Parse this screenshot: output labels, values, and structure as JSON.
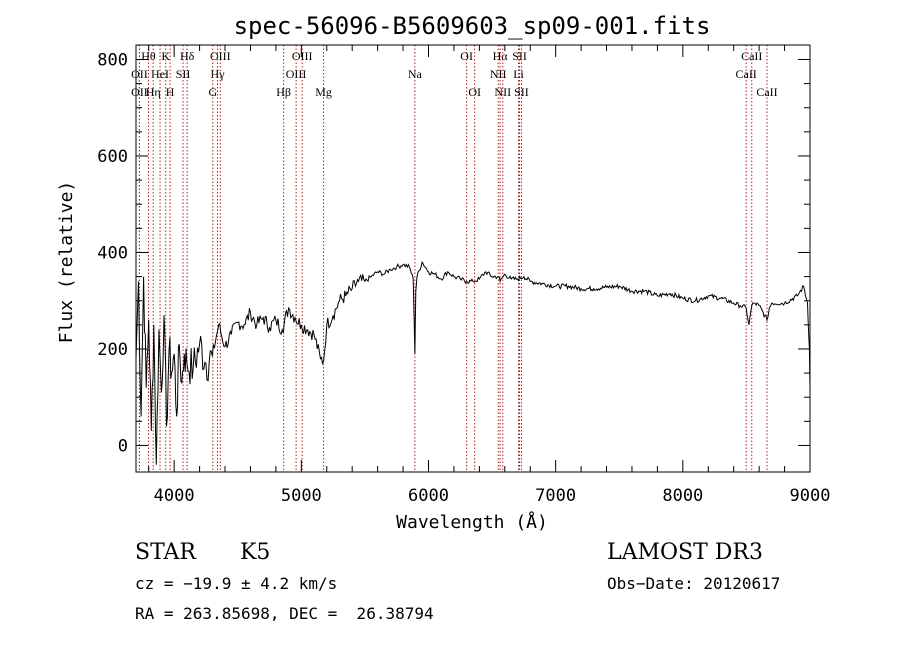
{
  "chart_data": {
    "type": "line",
    "title": "spec-56096-B5609603_sp09-001.fits",
    "xlabel": "Wavelength (Å)",
    "ylabel": "Flux (relative)",
    "xlim": [
      3700,
      9000
    ],
    "ylim": [
      -55,
      830
    ],
    "x_ticks": [
      4000,
      5000,
      6000,
      7000,
      8000,
      9000
    ],
    "y_ticks": [
      0,
      200,
      400,
      600,
      800
    ],
    "series": [
      {
        "name": "flux",
        "x": [
          3700,
          3720,
          3740,
          3760,
          3780,
          3800,
          3820,
          3840,
          3860,
          3880,
          3900,
          3920,
          3940,
          3960,
          3980,
          4000,
          4020,
          4040,
          4060,
          4080,
          4100,
          4150,
          4200,
          4250,
          4300,
          4350,
          4400,
          4450,
          4500,
          4550,
          4600,
          4650,
          4700,
          4750,
          4800,
          4850,
          4900,
          4950,
          5000,
          5050,
          5100,
          5150,
          5175,
          5200,
          5250,
          5300,
          5350,
          5400,
          5450,
          5500,
          5550,
          5600,
          5650,
          5700,
          5750,
          5800,
          5850,
          5880,
          5893,
          5900,
          5910,
          5950,
          6000,
          6050,
          6100,
          6150,
          6200,
          6250,
          6300,
          6350,
          6400,
          6450,
          6500,
          6550,
          6563,
          6600,
          6650,
          6700,
          6750,
          6800,
          6900,
          7000,
          7100,
          7200,
          7300,
          7400,
          7500,
          7600,
          7700,
          7800,
          7900,
          8000,
          8100,
          8200,
          8300,
          8400,
          8450,
          8498,
          8520,
          8542,
          8560,
          8600,
          8662,
          8680,
          8700,
          8800,
          8900,
          8950,
          8980,
          8995,
          9000
        ],
        "values": [
          180,
          340,
          60,
          350,
          120,
          260,
          30,
          250,
          -40,
          240,
          110,
          270,
          40,
          200,
          150,
          190,
          60,
          210,
          130,
          190,
          170,
          160,
          210,
          170,
          185,
          250,
          205,
          230,
          255,
          250,
          275,
          250,
          265,
          245,
          260,
          240,
          285,
          265,
          250,
          240,
          230,
          180,
          175,
          250,
          270,
          300,
          310,
          325,
          340,
          340,
          350,
          360,
          355,
          365,
          370,
          375,
          370,
          345,
          190,
          320,
          350,
          380,
          360,
          355,
          345,
          360,
          350,
          345,
          340,
          340,
          345,
          360,
          350,
          350,
          340,
          355,
          345,
          345,
          350,
          340,
          335,
          330,
          330,
          325,
          325,
          328,
          330,
          320,
          320,
          310,
          315,
          305,
          300,
          310,
          305,
          295,
          290,
          285,
          250,
          290,
          295,
          290,
          260,
          285,
          295,
          295,
          310,
          330,
          295,
          200,
          120
        ]
      }
    ],
    "lines": [
      {
        "name": "Hθ",
        "x": 3798
      },
      {
        "name": "K",
        "x": 3934
      },
      {
        "name": "Hδ",
        "x": 4102
      },
      {
        "name": "OIII",
        "x": 4363
      },
      {
        "name": "OII",
        "x": 3727
      },
      {
        "name": "HeI",
        "x": 3889
      },
      {
        "name": "SII",
        "x": 4070
      },
      {
        "name": "Hγ",
        "x": 4341
      },
      {
        "name": "OII",
        "x": 3727
      },
      {
        "name": "Hη",
        "x": 3835
      },
      {
        "name": "H",
        "x": 3968
      },
      {
        "name": "G",
        "x": 4304
      },
      {
        "name": "OIII",
        "x": 5007
      },
      {
        "name": "OIII",
        "x": 4959
      },
      {
        "name": "Hβ",
        "x": 4861
      },
      {
        "name": "Mg",
        "x": 5175
      },
      {
        "name": "Na",
        "x": 5893
      },
      {
        "name": "OI",
        "x": 6300
      },
      {
        "name": "OI",
        "x": 6363
      },
      {
        "name": "Hα",
        "x": 6563
      },
      {
        "name": "SII",
        "x": 6716
      },
      {
        "name": "NII",
        "x": 6548
      },
      {
        "name": "Li",
        "x": 6708
      },
      {
        "name": "NII",
        "x": 6584
      },
      {
        "name": "SII",
        "x": 6731
      },
      {
        "name": "CaII",
        "x": 8542
      },
      {
        "name": "CaII",
        "x": 8498
      },
      {
        "name": "CaII",
        "x": 8662
      }
    ]
  },
  "info": {
    "object_class": "STAR",
    "subclass": "K5",
    "survey": "LAMOST DR3",
    "cz": "cz = −19.9 ± 4.2 km/s",
    "obs_date": "Obs−Date: 20120617",
    "coords": "RA = 263.85698, DEC =  26.38794"
  },
  "colors": {
    "spectrum": "#000000",
    "line_marker": "#b22222",
    "axes": "#000000"
  }
}
